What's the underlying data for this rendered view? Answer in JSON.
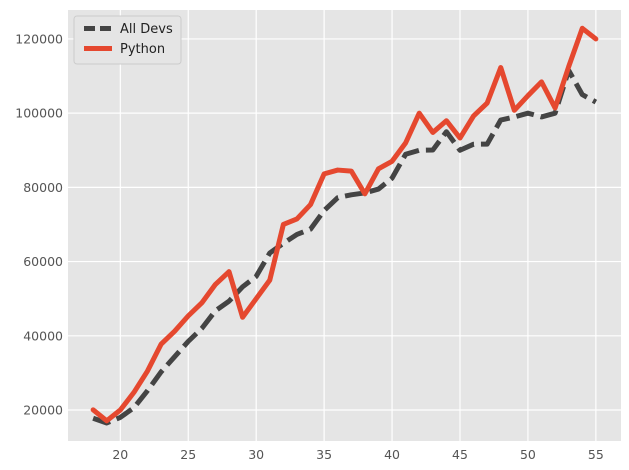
{
  "chart_data": {
    "type": "line",
    "title": "",
    "xlabel": "",
    "ylabel": "",
    "xlim": [
      16.15,
      56.85
    ],
    "ylim": [
      11650,
      127800
    ],
    "xticks": [
      20,
      25,
      30,
      35,
      40,
      45,
      50,
      55
    ],
    "yticks": [
      20000,
      40000,
      60000,
      80000,
      100000,
      120000
    ],
    "grid": true,
    "legend": "top-left",
    "x": [
      18,
      19,
      20,
      21,
      22,
      23,
      24,
      25,
      26,
      27,
      28,
      29,
      30,
      31,
      32,
      33,
      34,
      35,
      36,
      37,
      38,
      39,
      40,
      41,
      42,
      43,
      44,
      45,
      46,
      47,
      48,
      49,
      50,
      51,
      52,
      53,
      54,
      55
    ],
    "series": [
      {
        "name": "All Devs",
        "color": "#444444",
        "style": "dashed",
        "values": [
          17784,
          16500,
          18012,
          20628,
          25206,
          30252,
          34368,
          38496,
          42000,
          46752,
          49320,
          53200,
          56000,
          62316,
          64928,
          67317,
          68748,
          73752,
          77232,
          78000,
          78508,
          79536,
          82488,
          88935,
          90000,
          90056,
          95000,
          90000,
          91633,
          91660,
          98150,
          98964,
          100000,
          98988,
          100000,
          111520,
          105000,
          103000
        ]
      },
      {
        "name": "Python",
        "color": "#e5482f",
        "style": "solid",
        "values": [
          20046,
          17100,
          20000,
          24744,
          30500,
          37732,
          41247,
          45372,
          48876,
          53850,
          57287,
          45000,
          50000,
          55000,
          70000,
          71496,
          75370,
          83640,
          84666,
          84392,
          78254,
          85000,
          87038,
          91991,
          100000,
          94796,
          97962,
          93302,
          99240,
          102736,
          112285,
          100771,
          104708,
          108423,
          101407,
          112542,
          122870,
          120000
        ]
      }
    ]
  }
}
